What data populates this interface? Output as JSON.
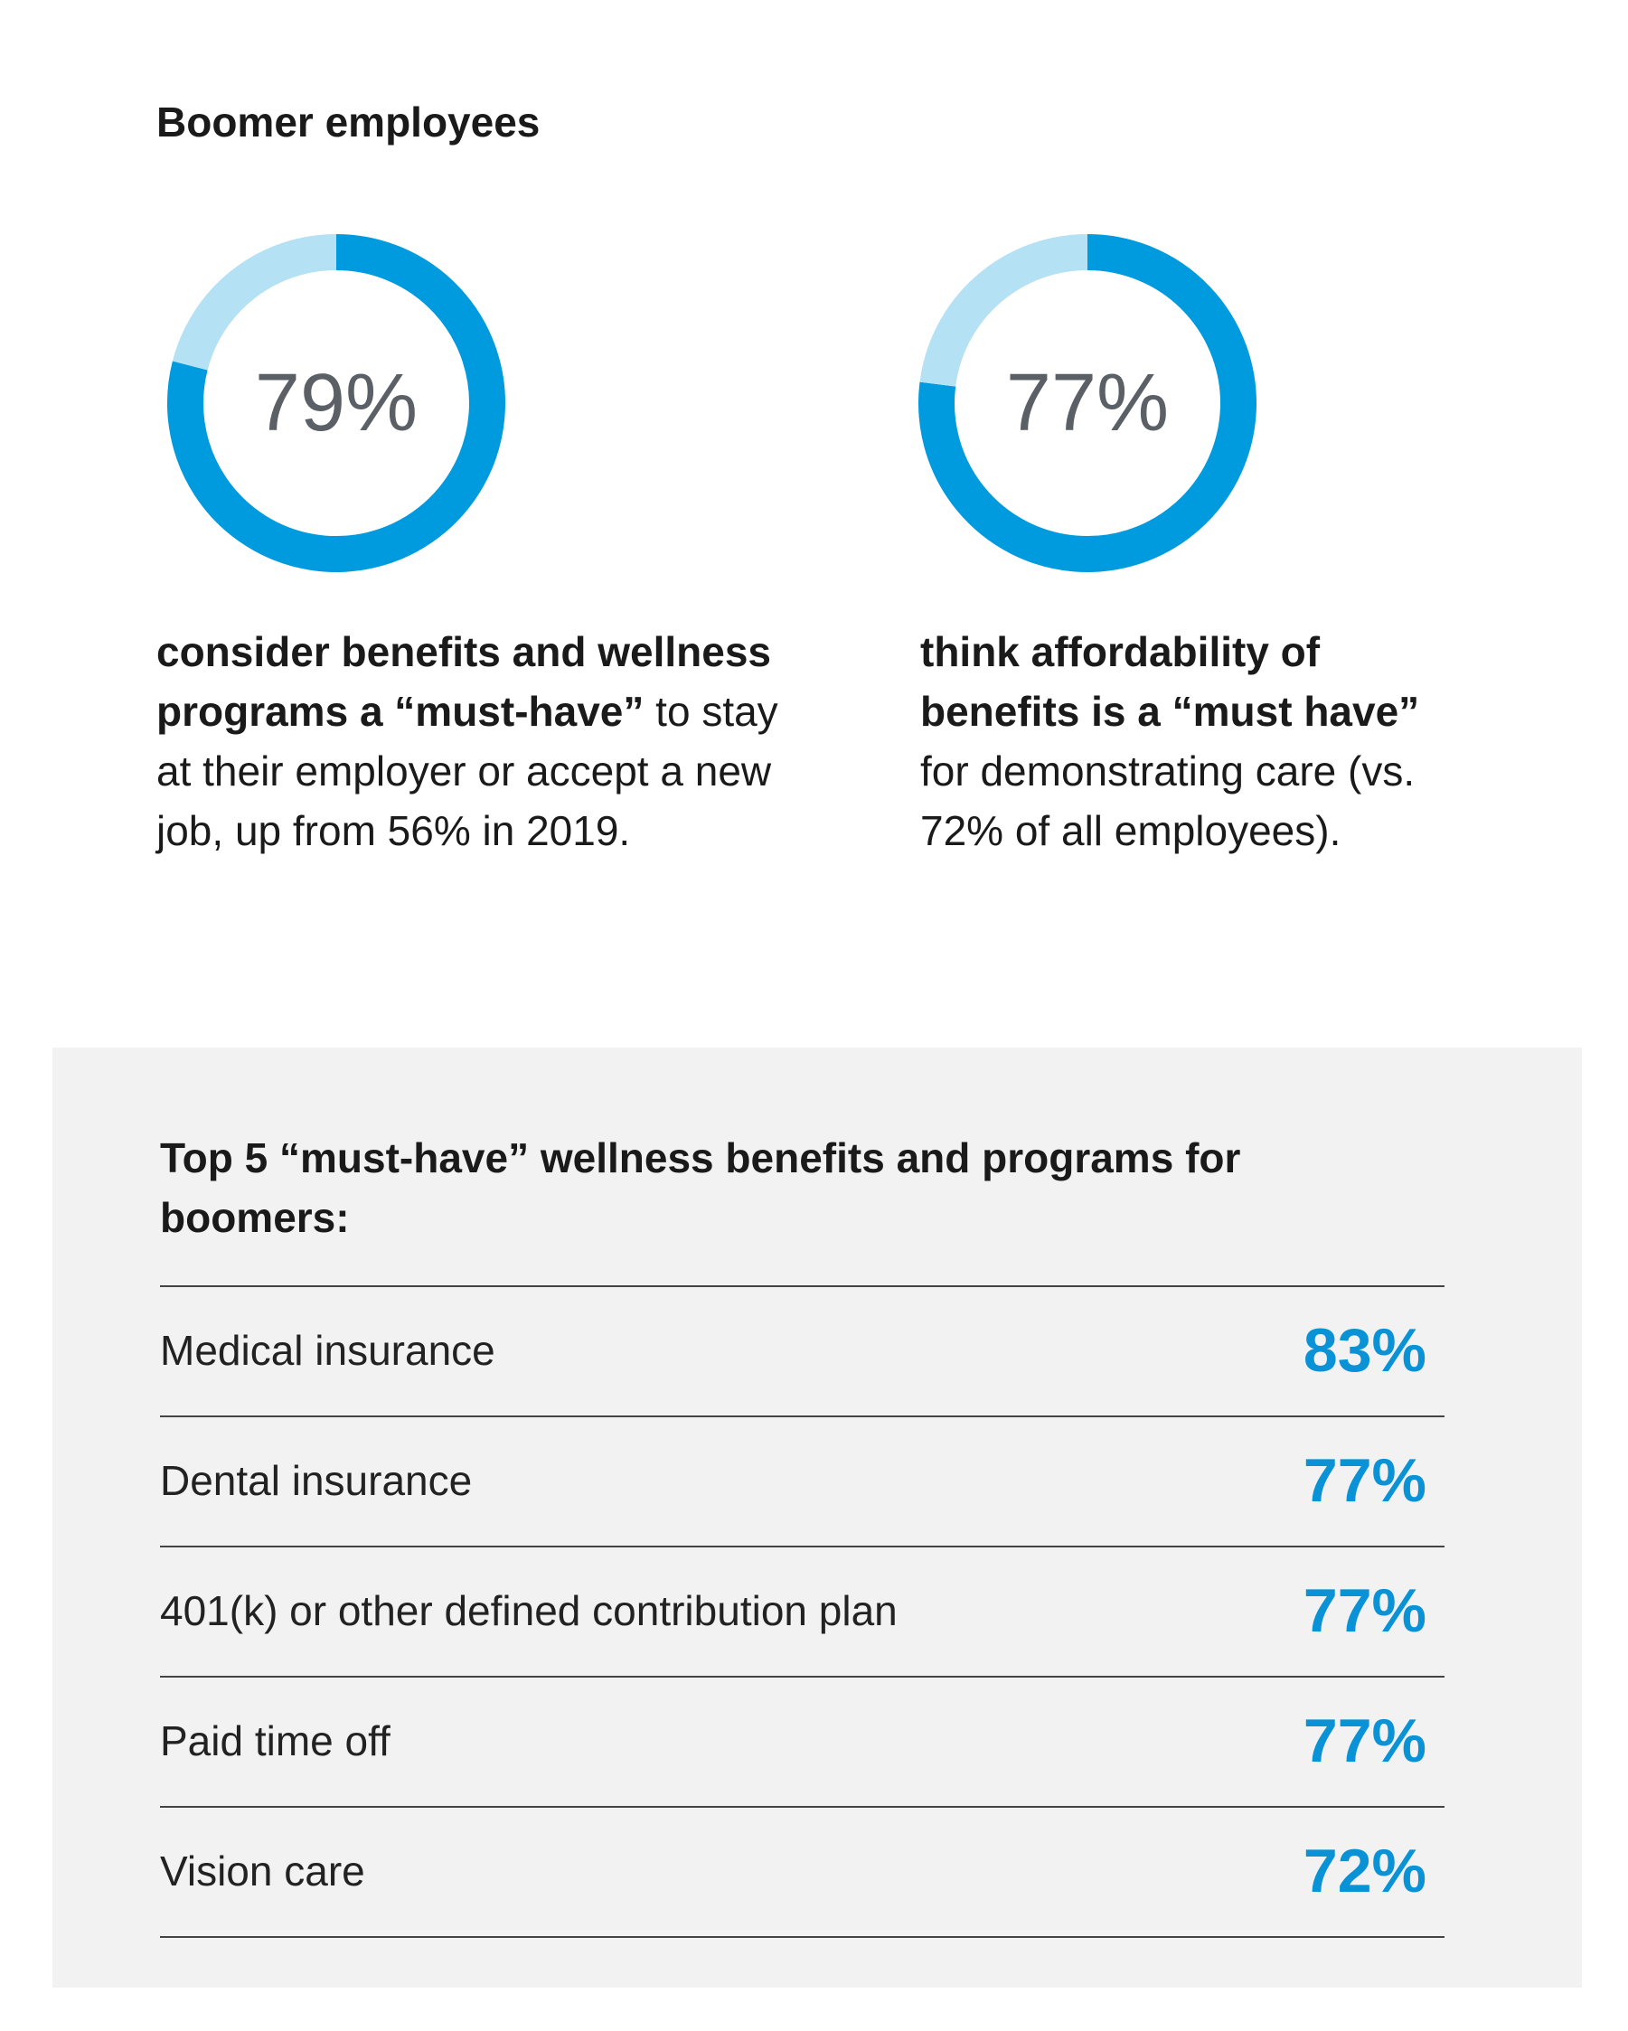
{
  "header": {
    "title": "Boomer employees"
  },
  "chart_data": [
    {
      "type": "donut",
      "values": [
        79,
        21
      ],
      "colors": [
        "#009ade",
        "#b5e1f5"
      ],
      "center_label": "79%",
      "caption": {
        "bold": "consider benefits and wellness programs a “must-have”",
        "text": " to stay at their employer or accept a new job, up from 56% in 2019."
      }
    },
    {
      "type": "donut",
      "values": [
        77,
        23
      ],
      "colors": [
        "#009ade",
        "#b5e1f5"
      ],
      "center_label": "77%",
      "caption": {
        "bold": "think affordability of benefits is a “must have”",
        "text": " for demonstrating care (vs. 72% of all employees)."
      }
    }
  ],
  "table": {
    "title": "Top 5 “must-have” wellness benefits and programs for boomers:",
    "rows": [
      [
        "Medical insurance",
        "83%"
      ],
      [
        "Dental insurance",
        "77%"
      ],
      [
        "401(k) or other defined contribution plan",
        "77%"
      ],
      [
        "Paid time off",
        "77%"
      ],
      [
        "Vision care",
        "72%"
      ]
    ]
  }
}
